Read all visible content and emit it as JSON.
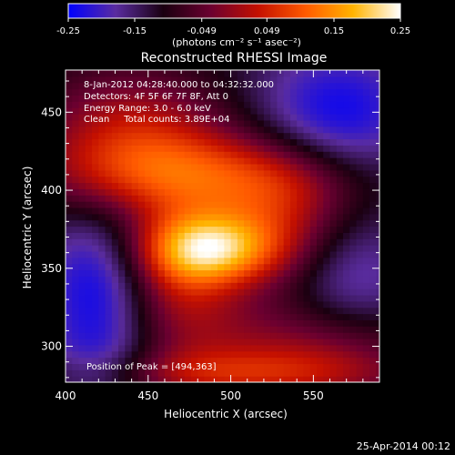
{
  "chart_data": {
    "type": "heatmap",
    "title": "Reconstructed RHESSI Image",
    "xlabel": "Heliocentric X (arcsec)",
    "ylabel": "Heliocentric Y (arcsec)",
    "xlim": [
      400,
      590
    ],
    "ylim": [
      277,
      477
    ],
    "x_ticks": [
      400,
      450,
      500,
      550
    ],
    "y_ticks": [
      300,
      350,
      400,
      450
    ],
    "colorbar": {
      "range": [
        -0.25,
        0.25
      ],
      "ticks": [
        "-0.25",
        "-0.15",
        "-0.049",
        "0.049",
        "0.15",
        "0.25"
      ],
      "tick_values": [
        -0.25,
        -0.15,
        -0.049,
        0.049,
        0.15,
        0.25
      ],
      "unit_label": "(photons cm⁻² s⁻¹ asec⁻²)",
      "colormap": [
        "#0000ff",
        "#5a2ca0",
        "#1a0010",
        "#6b0030",
        "#c41000",
        "#ff5a00",
        "#ffb300",
        "#ffffff"
      ]
    },
    "annotations": {
      "time_range": "8-Jan-2012 04:28:40.000 to 04:32:32.000",
      "detectors": "Detectors: 4F 5F 6F 7F 8F, Att 0",
      "energy_range": "Energy Range: 3.0 - 6.0 keV",
      "method_and_counts": "Clean     Total counts: 3.89E+04",
      "peak": "Position of Peak = [494,363]"
    },
    "peak": {
      "x": 494,
      "y": 363
    },
    "blobs": [
      {
        "x": 490,
        "y": 363,
        "sx": 30,
        "sy": 16,
        "a": 0.26
      },
      {
        "x": 470,
        "y": 350,
        "sx": 26,
        "sy": 30,
        "a": 0.12
      },
      {
        "x": 475,
        "y": 410,
        "sx": 60,
        "sy": 20,
        "a": 0.17
      },
      {
        "x": 440,
        "y": 440,
        "sx": 40,
        "sy": 28,
        "a": 0.13
      },
      {
        "x": 530,
        "y": 395,
        "sx": 30,
        "sy": 22,
        "a": 0.09
      },
      {
        "x": 560,
        "y": 300,
        "sx": 40,
        "sy": 22,
        "a": 0.1
      },
      {
        "x": 470,
        "y": 305,
        "sx": 50,
        "sy": 25,
        "a": 0.07
      },
      {
        "x": 495,
        "y": 282,
        "sx": 70,
        "sy": 12,
        "a": 0.12
      },
      {
        "x": 540,
        "y": 360,
        "sx": 25,
        "sy": 25,
        "a": 0.05
      },
      {
        "x": 420,
        "y": 330,
        "sx": 25,
        "sy": 40,
        "a": -0.14
      },
      {
        "x": 565,
        "y": 450,
        "sx": 35,
        "sy": 30,
        "a": -0.12
      },
      {
        "x": 570,
        "y": 340,
        "sx": 30,
        "sy": 30,
        "a": -0.09
      },
      {
        "x": 425,
        "y": 285,
        "sx": 30,
        "sy": 20,
        "a": -0.06
      }
    ]
  },
  "footer": {
    "timestamp": "25-Apr-2014 00:12"
  }
}
